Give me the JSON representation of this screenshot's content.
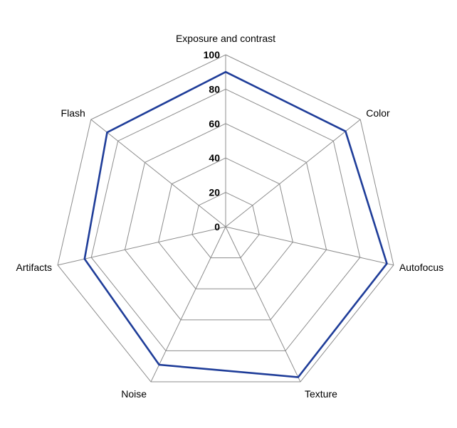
{
  "chart_data": {
    "type": "radar",
    "categories": [
      "Exposure and contrast",
      "Color",
      "Autofocus",
      "Texture",
      "Noise",
      "Artifacts",
      "Flash"
    ],
    "series": [
      {
        "values": [
          90,
          89,
          96,
          97,
          89,
          84,
          88
        ],
        "color": "#1f3d99"
      }
    ],
    "rlim": [
      0,
      100
    ],
    "ticks": [
      "0",
      "20",
      "40",
      "60",
      "80",
      "100"
    ],
    "tick_values": [
      0,
      20,
      40,
      60,
      80,
      100
    ],
    "grid_color": "#8c8c8c",
    "legend": "none"
  }
}
